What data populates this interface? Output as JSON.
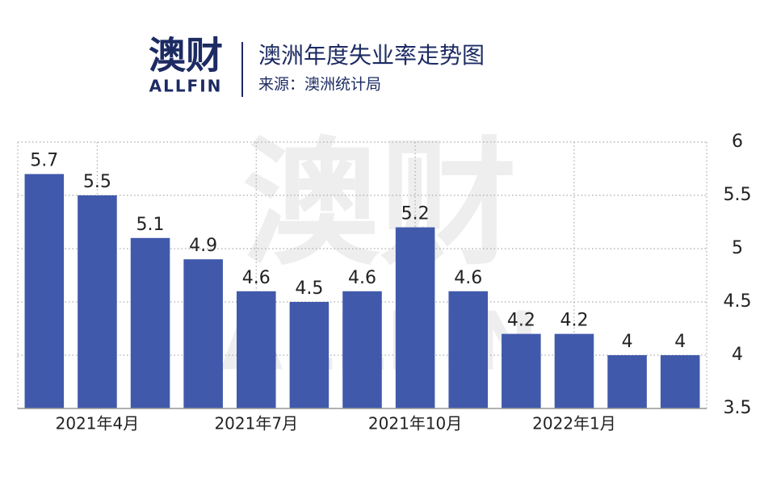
{
  "chart_data": {
    "type": "bar",
    "logo": {
      "name": "澳财",
      "sub": "ALLFIN"
    },
    "title": "澳洲年度失业率走势图",
    "subtitle": "来源：澳洲统计局",
    "categories": [
      null,
      "2021年4月",
      null,
      null,
      "2021年7月",
      null,
      null,
      "2021年10月",
      null,
      null,
      "2022年1月",
      null,
      null
    ],
    "values": [
      5.7,
      5.5,
      5.1,
      4.9,
      4.6,
      4.5,
      4.6,
      5.2,
      4.6,
      4.2,
      4.2,
      4,
      4
    ],
    "color": "#4059ab",
    "ylim": [
      3.5,
      6
    ],
    "yticks": [
      3.5,
      4,
      4.5,
      5,
      5.5,
      6
    ],
    "grid": true,
    "y_axis_side": "right"
  }
}
